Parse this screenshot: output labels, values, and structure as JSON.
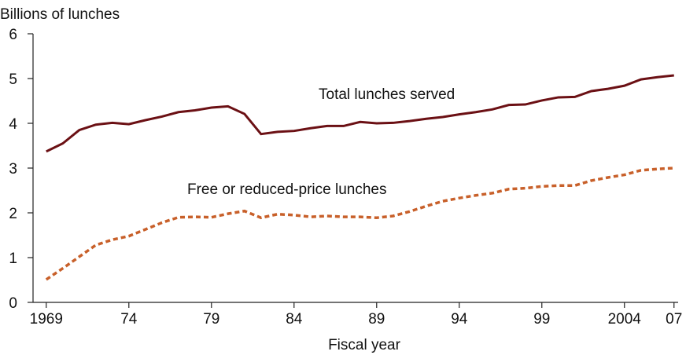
{
  "chart_data": {
    "type": "line",
    "y_label": "Billions of lunches",
    "x_label": "Fiscal year",
    "annotations": [
      "Total lunches served",
      "Free or reduced-price lunches"
    ],
    "x": [
      1969,
      1970,
      1971,
      1972,
      1973,
      1974,
      1975,
      1976,
      1977,
      1978,
      1979,
      1980,
      1981,
      1982,
      1983,
      1984,
      1985,
      1986,
      1987,
      1988,
      1989,
      1990,
      1991,
      1992,
      1993,
      1994,
      1995,
      1996,
      1997,
      1998,
      1999,
      2000,
      2001,
      2002,
      2003,
      2004,
      2005,
      2006,
      2007
    ],
    "series": [
      {
        "name": "Total lunches served",
        "color": "#6b1014",
        "dashed": false,
        "values": [
          3.37,
          3.55,
          3.85,
          3.97,
          4.01,
          3.98,
          4.07,
          4.15,
          4.25,
          4.29,
          4.35,
          4.38,
          4.21,
          3.76,
          3.81,
          3.83,
          3.89,
          3.94,
          3.94,
          4.03,
          4.0,
          4.01,
          4.05,
          4.1,
          4.14,
          4.2,
          4.25,
          4.31,
          4.41,
          4.42,
          4.51,
          4.58,
          4.59,
          4.72,
          4.77,
          4.84,
          4.98,
          5.03,
          5.07
        ]
      },
      {
        "name": "Free or reduced-price lunches",
        "color": "#c8602a",
        "dashed": true,
        "values": [
          0.51,
          0.76,
          1.02,
          1.28,
          1.4,
          1.48,
          1.63,
          1.78,
          1.9,
          1.91,
          1.9,
          1.98,
          2.04,
          1.89,
          1.97,
          1.95,
          1.91,
          1.93,
          1.91,
          1.91,
          1.89,
          1.93,
          2.03,
          2.15,
          2.26,
          2.33,
          2.39,
          2.44,
          2.53,
          2.55,
          2.59,
          2.61,
          2.61,
          2.72,
          2.79,
          2.85,
          2.95,
          2.98,
          3.0
        ]
      }
    ],
    "xlim": [
      1968.2,
      2007.25
    ],
    "ylim": [
      0,
      6
    ],
    "xticks": [
      1969,
      {
        "value": 1974,
        "label": "74"
      },
      {
        "value": 1979,
        "label": "79"
      },
      {
        "value": 1984,
        "label": "84"
      },
      {
        "value": 1989,
        "label": "89"
      },
      {
        "value": 1994,
        "label": "94"
      },
      {
        "value": 1999,
        "label": "99"
      },
      2004,
      {
        "value": 2007,
        "label": "07"
      }
    ],
    "yticks": [
      0,
      1,
      2,
      3,
      4,
      5,
      6
    ],
    "grid": false
  }
}
